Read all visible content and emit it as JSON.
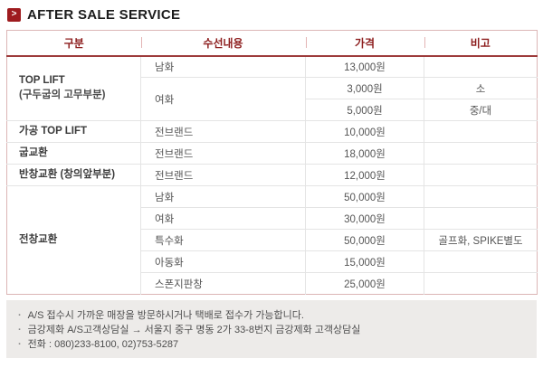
{
  "page": {
    "title": "AFTER SALE SERVICE",
    "title_icon_glyph": ">"
  },
  "colors": {
    "accent_red": "#9E1B1F",
    "header_text_red": "#8C1C1C",
    "header_rule_red": "#9D3B3B",
    "table_border_pink": "#DCB6B6",
    "grid_line_gray": "#E4E4E4",
    "footer_bg_gray": "#EDEBE9"
  },
  "table": {
    "headers": [
      "구분",
      "수선내용",
      "가격",
      "비고"
    ],
    "rows": [
      [
        {
          "kind": "category",
          "text": "TOP LIFT",
          "sub": "(구두굽의 고무부분)",
          "rowspan": 3
        },
        {
          "kind": "item",
          "text": "남화"
        },
        {
          "kind": "price",
          "text": "13,000원"
        },
        {
          "kind": "note",
          "text": ""
        }
      ],
      [
        {
          "kind": "item",
          "text": "여화",
          "rowspan": 2
        },
        {
          "kind": "price",
          "text": "3,000원"
        },
        {
          "kind": "note",
          "text": "소"
        }
      ],
      [
        {
          "kind": "price",
          "text": "5,000원"
        },
        {
          "kind": "note",
          "text": "중/대"
        }
      ],
      [
        {
          "kind": "category",
          "text": "가공 TOP LIFT"
        },
        {
          "kind": "item",
          "text": "전브랜드"
        },
        {
          "kind": "price",
          "text": "10,000원"
        },
        {
          "kind": "note",
          "text": ""
        }
      ],
      [
        {
          "kind": "category",
          "text": "굽교환"
        },
        {
          "kind": "item",
          "text": "전브랜드"
        },
        {
          "kind": "price",
          "text": "18,000원"
        },
        {
          "kind": "note",
          "text": ""
        }
      ],
      [
        {
          "kind": "category",
          "text": "반창교환 (창의앞부분)"
        },
        {
          "kind": "item",
          "text": "전브랜드"
        },
        {
          "kind": "price",
          "text": "12,000원"
        },
        {
          "kind": "note",
          "text": ""
        }
      ],
      [
        {
          "kind": "category",
          "text": "전창교환",
          "rowspan": 5
        },
        {
          "kind": "item",
          "text": "남화"
        },
        {
          "kind": "price",
          "text": "50,000원"
        },
        {
          "kind": "note",
          "text": ""
        }
      ],
      [
        {
          "kind": "item",
          "text": "여화"
        },
        {
          "kind": "price",
          "text": "30,000원"
        },
        {
          "kind": "note",
          "text": ""
        }
      ],
      [
        {
          "kind": "item",
          "text": "특수화"
        },
        {
          "kind": "price",
          "text": "50,000원"
        },
        {
          "kind": "note",
          "text": "골프화, SPIKE별도"
        }
      ],
      [
        {
          "kind": "item",
          "text": "아동화"
        },
        {
          "kind": "price",
          "text": "15,000원"
        },
        {
          "kind": "note",
          "text": ""
        }
      ],
      [
        {
          "kind": "item",
          "text": "스폰지판창"
        },
        {
          "kind": "price",
          "text": "25,000원"
        },
        {
          "kind": "note",
          "text": ""
        }
      ]
    ]
  },
  "footer": {
    "bullet": "·",
    "notes": [
      "A/S 접수시 가까운 매장을 방문하시거나 택배로 접수가 가능합니다.",
      "금강제화 A/S고객상담실 → 서울지 중구 명동 2가 33-8번지 금강제화 고객상담실",
      "전화 : 080)233-8100, 02)753-5287"
    ]
  }
}
